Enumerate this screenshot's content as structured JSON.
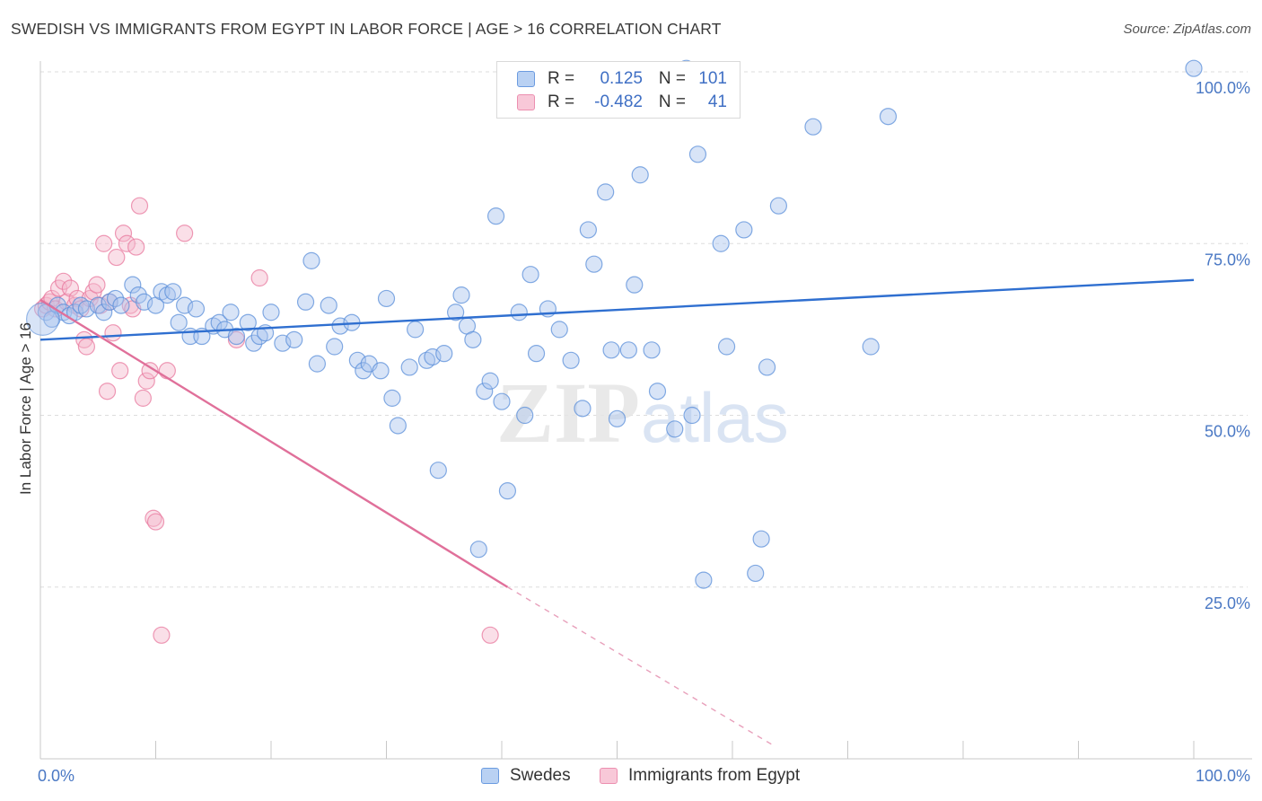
{
  "title": "SWEDISH VS IMMIGRANTS FROM EGYPT IN LABOR FORCE | AGE > 16 CORRELATION CHART",
  "source": "Source: ZipAtlas.com",
  "colors": {
    "swedes": "#5b8fd9",
    "swedes_fill": "#a9c4ee",
    "egypt": "#e8789e",
    "egypt_fill": "#f5b8cc",
    "tick_label": "#4a78c4",
    "grid": "#dddddd"
  },
  "legend": {
    "rows": [
      {
        "r_label": "R =",
        "r_value": "0.125",
        "n_label": "N =",
        "n_value": "101"
      },
      {
        "r_label": "R =",
        "r_value": "-0.482",
        "n_label": "N =",
        "n_value": "41"
      }
    ]
  },
  "bottom_legend": {
    "swedes": "Swedes",
    "egypt": "Immigrants from Egypt"
  },
  "watermark": {
    "zip": "ZIP",
    "atlas": "atlas"
  },
  "chart_data": {
    "type": "scatter",
    "title": "SWEDISH VS IMMIGRANTS FROM EGYPT IN LABOR FORCE | AGE > 16 CORRELATION CHART",
    "xlabel": "",
    "ylabel": "In Labor Force | Age > 16",
    "xlim": [
      0,
      100
    ],
    "ylim": [
      0,
      100
    ],
    "x_tick_labels": [
      "0.0%",
      "100.0%"
    ],
    "y_ticks": [
      25,
      50,
      75,
      100
    ],
    "y_tick_labels": [
      "25.0%",
      "50.0%",
      "75.0%",
      "100.0%"
    ],
    "grid": true,
    "legend_position": "top-center",
    "series": [
      {
        "name": "Swedes",
        "r": 0.125,
        "n": 101,
        "trend": {
          "x": [
            0,
            100
          ],
          "y": [
            61.0,
            69.7
          ],
          "dashed_from": null
        },
        "points": [
          [
            0.5,
            65
          ],
          [
            1,
            64
          ],
          [
            1.5,
            66
          ],
          [
            2,
            65
          ],
          [
            2.5,
            64.5
          ],
          [
            3,
            65
          ],
          [
            3.5,
            66
          ],
          [
            4,
            65.5
          ],
          [
            5,
            66
          ],
          [
            5.5,
            65
          ],
          [
            6,
            66.5
          ],
          [
            6.5,
            67
          ],
          [
            7,
            66
          ],
          [
            8,
            69
          ],
          [
            8.5,
            67.5
          ],
          [
            9,
            66.5
          ],
          [
            10,
            66
          ],
          [
            10.5,
            68
          ],
          [
            11,
            67.5
          ],
          [
            11.5,
            68
          ],
          [
            12,
            63.5
          ],
          [
            12.5,
            66
          ],
          [
            13,
            61.5
          ],
          [
            13.5,
            65.5
          ],
          [
            14,
            61.5
          ],
          [
            15,
            63
          ],
          [
            15.5,
            63.5
          ],
          [
            16,
            62.5
          ],
          [
            16.5,
            65
          ],
          [
            17,
            61.5
          ],
          [
            18,
            63.5
          ],
          [
            18.5,
            60.5
          ],
          [
            19,
            61.5
          ],
          [
            19.5,
            62
          ],
          [
            20,
            65
          ],
          [
            21,
            60.5
          ],
          [
            22,
            61
          ],
          [
            23,
            66.5
          ],
          [
            23.5,
            72.5
          ],
          [
            24,
            57.5
          ],
          [
            25,
            66
          ],
          [
            25.5,
            60
          ],
          [
            26,
            63
          ],
          [
            27,
            63.5
          ],
          [
            27.5,
            58
          ],
          [
            28,
            56.5
          ],
          [
            28.5,
            57.5
          ],
          [
            29.5,
            56.5
          ],
          [
            30,
            67
          ],
          [
            30.5,
            52.5
          ],
          [
            31,
            48.5
          ],
          [
            32,
            57
          ],
          [
            32.5,
            62.5
          ],
          [
            33.5,
            58
          ],
          [
            34,
            58.5
          ],
          [
            34.5,
            42
          ],
          [
            35,
            59
          ],
          [
            36,
            65
          ],
          [
            36.5,
            67.5
          ],
          [
            37,
            63
          ],
          [
            37.5,
            61
          ],
          [
            38,
            30.5
          ],
          [
            38.5,
            53.5
          ],
          [
            39,
            55
          ],
          [
            39.5,
            79
          ],
          [
            40,
            52
          ],
          [
            40.5,
            39
          ],
          [
            41.5,
            65
          ],
          [
            42,
            50
          ],
          [
            42.5,
            70.5
          ],
          [
            43,
            59
          ],
          [
            44,
            65.5
          ],
          [
            45,
            62.5
          ],
          [
            45.5,
            100
          ],
          [
            46,
            58
          ],
          [
            47,
            51
          ],
          [
            47.5,
            77
          ],
          [
            48,
            72
          ],
          [
            49,
            82.5
          ],
          [
            49.5,
            59.5
          ],
          [
            50,
            49.5
          ],
          [
            51,
            59.5
          ],
          [
            51.5,
            69
          ],
          [
            52,
            85
          ],
          [
            53,
            59.5
          ],
          [
            53.5,
            53.5
          ],
          [
            55,
            48
          ],
          [
            56,
            100.5
          ],
          [
            56.5,
            50
          ],
          [
            57,
            88
          ],
          [
            57.5,
            26
          ],
          [
            59,
            75
          ],
          [
            59.5,
            60
          ],
          [
            61,
            77
          ],
          [
            62,
            27
          ],
          [
            62.5,
            32
          ],
          [
            63,
            57
          ],
          [
            64,
            80.5
          ],
          [
            67,
            92
          ],
          [
            72,
            60
          ],
          [
            73.5,
            93.5
          ],
          [
            100,
            100.5
          ]
        ]
      },
      {
        "name": "Immigrants from Egypt",
        "r": -0.482,
        "n": 41,
        "trend": {
          "x": [
            0,
            40.5
          ],
          "y": [
            66.8,
            25.0
          ],
          "dashed_to": {
            "x": 63.5,
            "y": 2.0
          }
        },
        "points": [
          [
            0.2,
            65.5
          ],
          [
            0.5,
            66
          ],
          [
            0.8,
            66.5
          ],
          [
            1,
            67
          ],
          [
            1.3,
            65.5
          ],
          [
            1.6,
            68.5
          ],
          [
            2,
            69.5
          ],
          [
            2.3,
            66.5
          ],
          [
            2.6,
            68.5
          ],
          [
            3,
            66
          ],
          [
            3.2,
            67
          ],
          [
            3.5,
            65.5
          ],
          [
            3.8,
            61
          ],
          [
            4,
            60
          ],
          [
            4.3,
            67
          ],
          [
            4.6,
            68
          ],
          [
            4.9,
            69
          ],
          [
            5.2,
            66
          ],
          [
            5.5,
            75
          ],
          [
            5.8,
            53.5
          ],
          [
            6,
            66.5
          ],
          [
            6.3,
            62
          ],
          [
            6.6,
            73
          ],
          [
            6.9,
            56.5
          ],
          [
            7.2,
            76.5
          ],
          [
            7.5,
            75
          ],
          [
            7.8,
            66
          ],
          [
            8,
            65.5
          ],
          [
            8.3,
            74.5
          ],
          [
            8.6,
            80.5
          ],
          [
            8.9,
            52.5
          ],
          [
            9.2,
            55
          ],
          [
            9.5,
            56.5
          ],
          [
            9.8,
            35
          ],
          [
            10,
            34.5
          ],
          [
            10.5,
            18
          ],
          [
            11,
            56.5
          ],
          [
            12.5,
            76.5
          ],
          [
            17,
            61
          ],
          [
            19,
            70
          ],
          [
            39,
            18
          ]
        ]
      }
    ]
  }
}
